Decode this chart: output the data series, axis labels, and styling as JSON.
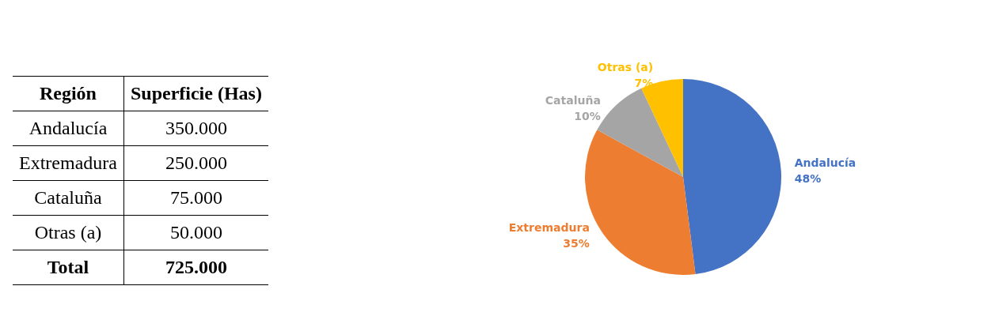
{
  "chart_data": [
    {
      "type": "other",
      "xlabel": "Región",
      "ylabel": "Superficie (Has)",
      "categories": [
        "Andalucía",
        "Extremadura",
        "Cataluña",
        "Otras (a)"
      ],
      "value_labels": [
        "350.000",
        "250.000",
        "75.000",
        "50.000"
      ],
      "annotations": [
        "Total"
      ],
      "totals": [
        "725.000"
      ]
    },
    {
      "type": "pie",
      "categories": [
        "Andalucía",
        "Extremadura",
        "Cataluña",
        "Otras (a)"
      ],
      "values": [
        48,
        35,
        10,
        7
      ],
      "colors": [
        "#4472c4",
        "#ed7d31",
        "#a5a5a5",
        "#ffc000"
      ],
      "value_labels": [
        "48%",
        "35%",
        "10%",
        "7%"
      ],
      "legend": false
    }
  ]
}
